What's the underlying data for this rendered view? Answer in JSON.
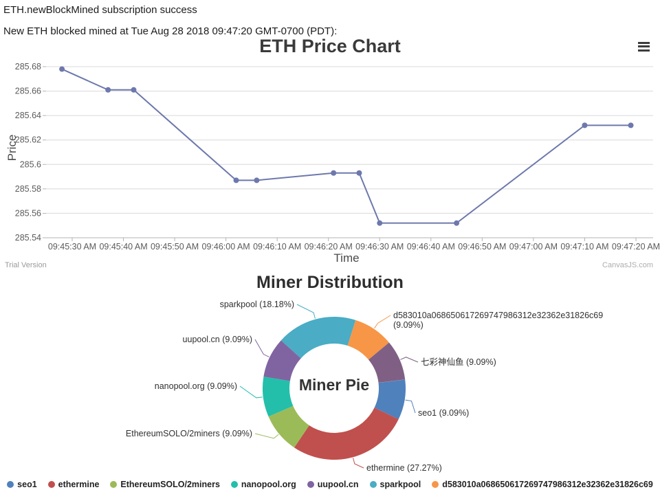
{
  "header": {
    "line1": "ETH.newBlockMined subscription success",
    "line2": "New ETH blocked mined at Tue Aug 28 2018 09:47:20 GMT-0700 (PDT):"
  },
  "price_chart": {
    "title": "ETH Price Chart",
    "y_axis_title": "Price",
    "x_axis_title": "Time",
    "watermark_left": "Trial Version",
    "watermark_right": "CanvasJS.com",
    "menu_icon": "hamburger-icon"
  },
  "miner_chart": {
    "title": "Miner Distribution",
    "center_label": "Miner Pie"
  },
  "chart_data": [
    {
      "type": "line",
      "title": "ETH Price Chart",
      "xlabel": "Time",
      "ylabel": "Price",
      "ylim": [
        285.54,
        285.68
      ],
      "grid": true,
      "line_color": "#6D78AD",
      "y_ticks": [
        "285.68",
        "285.66",
        "285.64",
        "285.62",
        "285.6",
        "285.58",
        "285.56",
        "285.54"
      ],
      "x_ticks": [
        "09:45:30 AM",
        "09:45:40 AM",
        "09:45:50 AM",
        "09:46:00 AM",
        "09:46:10 AM",
        "09:46:20 AM",
        "09:46:30 AM",
        "09:46:40 AM",
        "09:46:50 AM",
        "09:47:00 AM",
        "09:47:10 AM",
        "09:47:20 AM"
      ],
      "points": [
        {
          "time": "09:45:28 AM",
          "price": 285.678
        },
        {
          "time": "09:45:37 AM",
          "price": 285.661
        },
        {
          "time": "09:45:42 AM",
          "price": 285.661
        },
        {
          "time": "09:46:02 AM",
          "price": 285.587
        },
        {
          "time": "09:46:06 AM",
          "price": 285.587
        },
        {
          "time": "09:46:21 AM",
          "price": 285.593
        },
        {
          "time": "09:46:26 AM",
          "price": 285.593
        },
        {
          "time": "09:46:30 AM",
          "price": 285.552
        },
        {
          "time": "09:46:45 AM",
          "price": 285.552
        },
        {
          "time": "09:47:10 AM",
          "price": 285.632
        },
        {
          "time": "09:47:19 AM",
          "price": 285.632
        }
      ]
    },
    {
      "type": "pie",
      "subtype": "doughnut",
      "title": "Miner Distribution",
      "center_label": "Miner Pie",
      "start_angle_clockwise_from_top_deg": 83,
      "slices": [
        {
          "label": "seo1",
          "percent": 9.09,
          "color": "#4F81BC"
        },
        {
          "label": "ethermine",
          "percent": 27.27,
          "color": "#C0504E"
        },
        {
          "label": "EthereumSOLO/2miners",
          "percent": 9.09,
          "color": "#9BBB58"
        },
        {
          "label": "nanopool.org",
          "percent": 9.09,
          "color": "#23BFAA"
        },
        {
          "label": "uupool.cn",
          "percent": 9.09,
          "color": "#8064A1"
        },
        {
          "label": "sparkpool",
          "percent": 18.18,
          "color": "#4AACC5"
        },
        {
          "label": "d583010a068650617269747986312e32362e31826c69",
          "percent": 9.09,
          "color": "#F79647"
        },
        {
          "label": "七彩神仙鱼",
          "percent": 9.09,
          "color": "#7F6084"
        }
      ],
      "legend": {
        "position": "bottom",
        "visible_items": [
          "seo1",
          "ethermine",
          "EthereumSOLO/2miners",
          "nanopool.org",
          "uupool.cn",
          "sparkpool",
          "d583010a068650617269747986312e32362e31826c69"
        ]
      }
    }
  ]
}
